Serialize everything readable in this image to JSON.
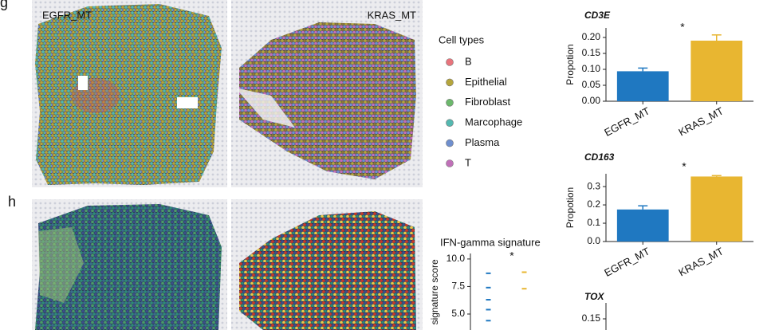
{
  "panel_labels": [
    "g",
    "h"
  ],
  "tissue_labels": [
    "EGFR_MT",
    "KRAS_MT"
  ],
  "legend": {
    "title": "Cell types",
    "items": [
      {
        "name": "B",
        "color": "#e8747c"
      },
      {
        "name": "Epithelial",
        "color": "#b5a53c"
      },
      {
        "name": "Fibroblast",
        "color": "#6cb86c"
      },
      {
        "name": "Marcophage",
        "color": "#54b8b0"
      },
      {
        "name": "Plasma",
        "color": "#6f8fce"
      },
      {
        "name": "T",
        "color": "#c070b8"
      }
    ]
  },
  "chart_data": [
    {
      "type": "bar",
      "title": "CD3E",
      "ylabel": "Propotion",
      "annotation": "*",
      "categories": [
        "EGFR_MT",
        "KRAS_MT"
      ],
      "values": [
        0.094,
        0.19
      ],
      "errors": [
        0.01,
        0.018
      ],
      "colors": [
        "#1f78c1",
        "#e8b631"
      ],
      "ylim": [
        0,
        0.23
      ],
      "yticks": [
        {
          "value": 0,
          "label": "0.00"
        },
        0.05,
        {
          "value": 0.1,
          "label": "0.10"
        },
        0.15,
        {
          "value": 0.2,
          "label": "0.20"
        }
      ]
    },
    {
      "type": "bar",
      "title": "CD163",
      "ylabel": "Propotion",
      "annotation": "*",
      "categories": [
        "EGFR_MT",
        "KRAS_MT"
      ],
      "values": [
        0.175,
        0.355
      ],
      "errors": [
        0.02,
        0.005
      ],
      "colors": [
        "#1f78c1",
        "#e8b631"
      ],
      "ylim": [
        0,
        0.37
      ],
      "yticks": [
        {
          "value": 0,
          "label": "0.0"
        },
        0.1,
        0.2,
        0.3
      ]
    },
    {
      "type": "bar",
      "title": "TOX",
      "ylim": [
        0,
        0.2
      ],
      "yticks": [
        0.15
      ]
    },
    {
      "type": "strip",
      "title": "IFN-gamma signature",
      "ylabel": "signature score",
      "annotation": "*",
      "ylim": [
        3.5,
        10.5
      ],
      "yticks": [
        {
          "value": 5,
          "label": "5.0"
        },
        7.5,
        {
          "value": 10,
          "label": "10.0"
        }
      ],
      "series": [
        {
          "color": "#1f78c1",
          "values": [
            8.7,
            7.4,
            6.3,
            5.4,
            4.4
          ]
        },
        {
          "color": "#e8b631",
          "values": [
            8.8,
            7.3
          ]
        }
      ]
    }
  ]
}
